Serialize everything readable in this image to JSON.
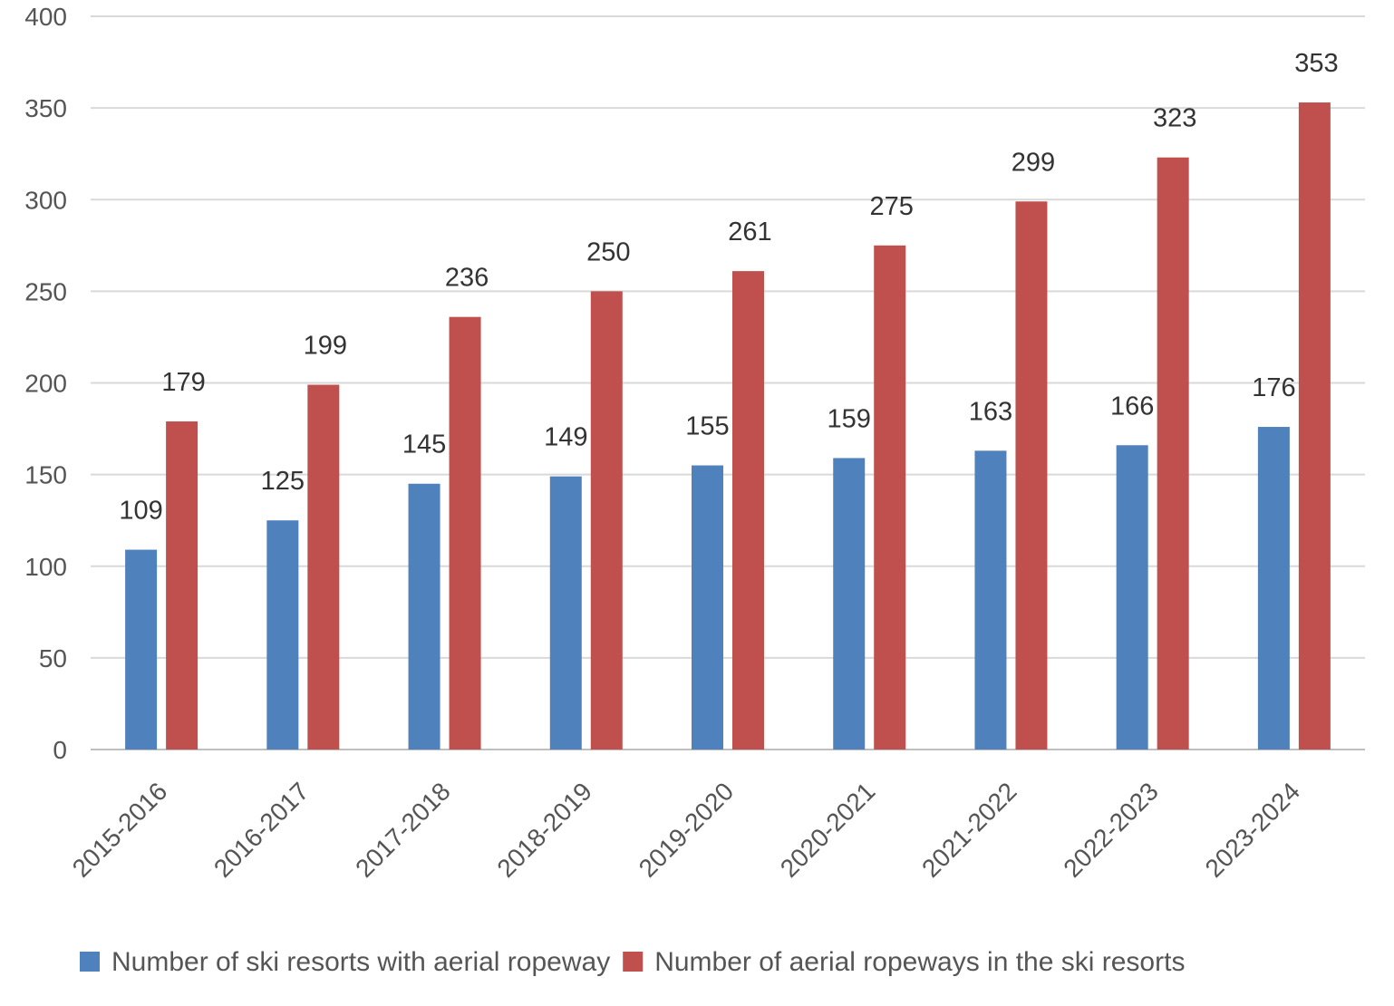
{
  "chart_data": {
    "type": "bar",
    "title": "",
    "xlabel": "",
    "ylabel": "",
    "ylim": [
      0,
      400
    ],
    "yticks": [
      0,
      50,
      100,
      150,
      200,
      250,
      300,
      350,
      400
    ],
    "grid": true,
    "legend_position": "bottom",
    "categories": [
      "2015-2016",
      "2016-2017",
      "2017-2018",
      "2018-2019",
      "2019-2020",
      "2020-2021",
      "2021-2022",
      "2022-2023",
      "2023-2024"
    ],
    "series": [
      {
        "name": "Number of ski resorts with aerial ropeway",
        "color": "#4f81bd",
        "values": [
          109,
          125,
          145,
          149,
          155,
          159,
          163,
          166,
          176
        ]
      },
      {
        "name": "Number of aerial ropeways in the ski resorts",
        "color": "#c0504d",
        "values": [
          179,
          199,
          236,
          250,
          261,
          275,
          299,
          323,
          353
        ]
      }
    ]
  }
}
